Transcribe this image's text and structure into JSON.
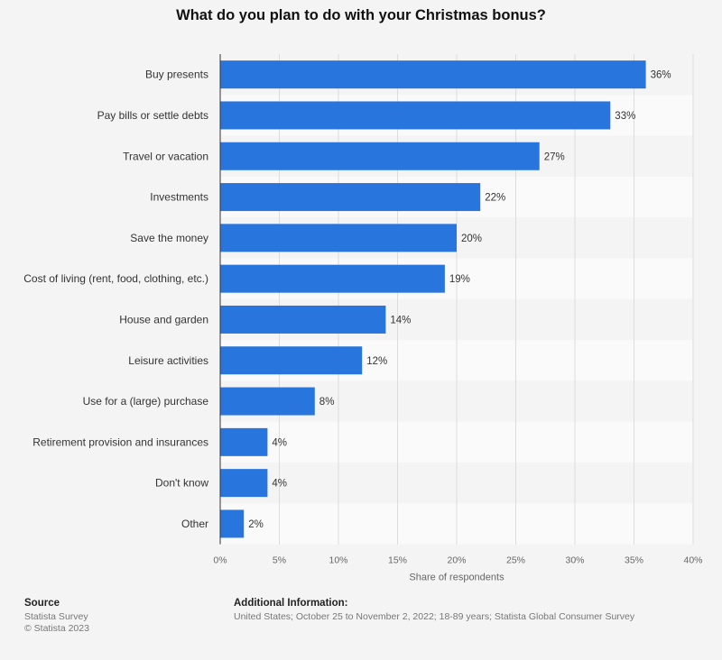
{
  "chart_data": {
    "type": "bar",
    "orientation": "horizontal",
    "title": "What do you plan to do with your Christmas bonus?",
    "categories": [
      "Buy presents",
      "Pay bills or settle debts",
      "Travel or vacation",
      "Investments",
      "Save the money",
      "Cost of living (rent, food, clothing, etc.)",
      "House and garden",
      "Leisure activities",
      "Use for a (large) purchase",
      "Retirement provision and insurances",
      "Don't know",
      "Other"
    ],
    "values": [
      36,
      33,
      27,
      22,
      20,
      19,
      14,
      12,
      8,
      4,
      4,
      2
    ],
    "value_suffix": "%",
    "xlabel": "Share of respondents",
    "ylabel": "",
    "xlim": [
      0,
      40
    ],
    "ticks": [
      "0%",
      "5%",
      "10%",
      "15%",
      "20%",
      "25%",
      "30%",
      "35%",
      "40%"
    ],
    "tick_values": [
      0,
      5,
      10,
      15,
      20,
      25,
      30,
      35,
      40
    ],
    "bar_color": "#2876dd",
    "grid": true
  },
  "footer": {
    "source_title": "Source",
    "source_lines": [
      "Statista Survey",
      "© Statista 2023"
    ],
    "additional_title": "Additional Information:",
    "additional_text": "United States; October 25 to November 2, 2022; 18-89 years; Statista Global Consumer Survey"
  }
}
